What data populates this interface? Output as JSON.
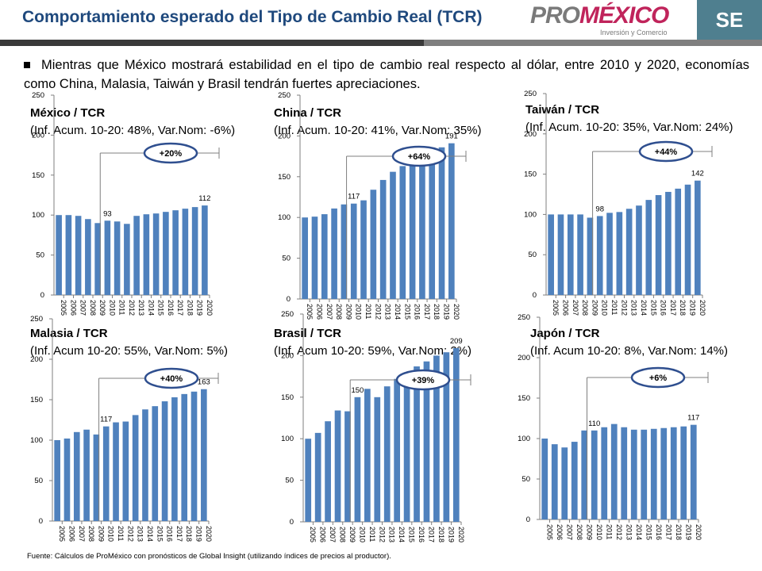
{
  "header": {
    "title": "Comportamiento esperado del Tipo de Cambio Real (TCR)",
    "logo_pro": "PRO",
    "logo_mexico": "MÉXICO",
    "logo_tagline": "Inversión y Comercio",
    "se_label": "SE"
  },
  "bullet": "Mientras que México mostrará  estabilidad en el tipo de cambio real respecto al dólar, entre 2010 y 2020, economías como China, Malasia, Taiwán y Brasil tendrán fuertes apreciaciones.",
  "footer": "Fuente: Cálculos de ProMéxico con pronósticos de Global Insight (utilizando índices de precios al productor).",
  "colors": {
    "bar": "#4f81bd",
    "badge_fill": "#ffffff",
    "badge_border": "#2f4f8f",
    "axis": "#7f7f7f"
  },
  "chart_data": [
    {
      "type": "bar",
      "id": "mexico",
      "title": "México  / TCR",
      "subtitle": "(Inf. Acum. 10-20: 48%, Var.Nom: -6%)",
      "categories": [
        "2005",
        "2006",
        "2007",
        "2008",
        "2009",
        "2010",
        "2011",
        "2012",
        "2013",
        "2014",
        "2015",
        "2016",
        "2017",
        "2018",
        "2019",
        "2020"
      ],
      "values": [
        100,
        100,
        99,
        95,
        90,
        93,
        92,
        89,
        99,
        101,
        102,
        104,
        106,
        108,
        110,
        112
      ],
      "ylim": [
        0,
        250
      ],
      "yticks": [
        0,
        50,
        100,
        150,
        200,
        250
      ],
      "labels": [
        {
          "index": 5,
          "text": "93"
        },
        {
          "index": 15,
          "text": "112"
        }
      ],
      "badge": "+20%"
    },
    {
      "type": "bar",
      "id": "china",
      "title": "China / TCR",
      "subtitle": "(Inf. Acum. 10-20: 41%, Var.Nom: 35%)",
      "categories": [
        "2005",
        "2006",
        "2007",
        "2008",
        "2009",
        "2010",
        "2011",
        "2012",
        "2013",
        "2014",
        "2015",
        "2016",
        "2017",
        "2018",
        "2019",
        "2020"
      ],
      "values": [
        100,
        101,
        104,
        111,
        116,
        117,
        121,
        134,
        146,
        156,
        163,
        168,
        174,
        180,
        186,
        191
      ],
      "ylim": [
        0,
        250
      ],
      "yticks": [
        0,
        50,
        100,
        150,
        200,
        250
      ],
      "labels": [
        {
          "index": 5,
          "text": "117"
        },
        {
          "index": 15,
          "text": "191"
        }
      ],
      "badge": "+64%"
    },
    {
      "type": "bar",
      "id": "taiwan",
      "title": "Taiwán / TCR",
      "subtitle": "(Inf. Acum. 10-20: 35%, Var.Nom: 24%)",
      "categories": [
        "2005",
        "2006",
        "2007",
        "2008",
        "2009",
        "2010",
        "2011",
        "2012",
        "2013",
        "2014",
        "2015",
        "2016",
        "2017",
        "2018",
        "2019",
        "2020"
      ],
      "values": [
        100,
        100,
        100,
        100,
        96,
        98,
        102,
        103,
        107,
        111,
        118,
        124,
        128,
        132,
        137,
        142
      ],
      "ylim": [
        0,
        250
      ],
      "yticks": [
        0,
        50,
        100,
        150,
        200,
        250
      ],
      "labels": [
        {
          "index": 5,
          "text": "98"
        },
        {
          "index": 15,
          "text": "142"
        }
      ],
      "badge": "+44%"
    },
    {
      "type": "bar",
      "id": "malasia",
      "title": "Malasia / TCR",
      "subtitle": "(Inf. Acum 10-20: 55%, Var.Nom: 5%)",
      "categories": [
        "2005",
        "2006",
        "2007",
        "2008",
        "2009",
        "2010",
        "2011",
        "2012",
        "2013",
        "2014",
        "2015",
        "2016",
        "2017",
        "2018",
        "2019",
        "2020"
      ],
      "values": [
        100,
        102,
        110,
        113,
        107,
        117,
        122,
        123,
        131,
        138,
        142,
        148,
        153,
        157,
        160,
        163
      ],
      "ylim": [
        0,
        250
      ],
      "yticks": [
        0,
        50,
        100,
        150,
        200,
        250
      ],
      "labels": [
        {
          "index": 5,
          "text": "117"
        },
        {
          "index": 15,
          "text": "163"
        }
      ],
      "badge": "+40%"
    },
    {
      "type": "bar",
      "id": "brasil",
      "title": "Brasil  / TCR",
      "subtitle": "(Inf. Acum 10-20: 59%, Var.Nom: 2%)",
      "categories": [
        "2005",
        "2006",
        "2007",
        "2008",
        "2009",
        "2010",
        "2011",
        "2012",
        "2013",
        "2014",
        "2015",
        "2016",
        "2017",
        "2018",
        "2019",
        "2020"
      ],
      "values": [
        100,
        107,
        121,
        134,
        133,
        150,
        160,
        150,
        163,
        172,
        180,
        187,
        193,
        200,
        204,
        209
      ],
      "ylim": [
        0,
        250
      ],
      "yticks": [
        0,
        50,
        100,
        150,
        200,
        250
      ],
      "labels": [
        {
          "index": 5,
          "text": "150"
        },
        {
          "index": 15,
          "text": "209"
        }
      ],
      "badge": "+39%"
    },
    {
      "type": "bar",
      "id": "japon",
      "title": "Japón / TCR",
      "subtitle": "(Inf. Acum 10-20: 8%, Var.Nom: 14%)",
      "categories": [
        "2005",
        "2006",
        "2007",
        "2008",
        "2009",
        "2010",
        "2011",
        "2012",
        "2013",
        "2014",
        "2015",
        "2016",
        "2017",
        "2018",
        "2019",
        "2020"
      ],
      "values": [
        100,
        93,
        89,
        96,
        110,
        110,
        114,
        118,
        114,
        111,
        111,
        112,
        113,
        114,
        115,
        117
      ],
      "ylim": [
        0,
        250
      ],
      "yticks": [
        0,
        50,
        100,
        150,
        200,
        250
      ],
      "labels": [
        {
          "index": 5,
          "text": "110"
        },
        {
          "index": 15,
          "text": "117"
        }
      ],
      "badge": "+6%"
    }
  ]
}
